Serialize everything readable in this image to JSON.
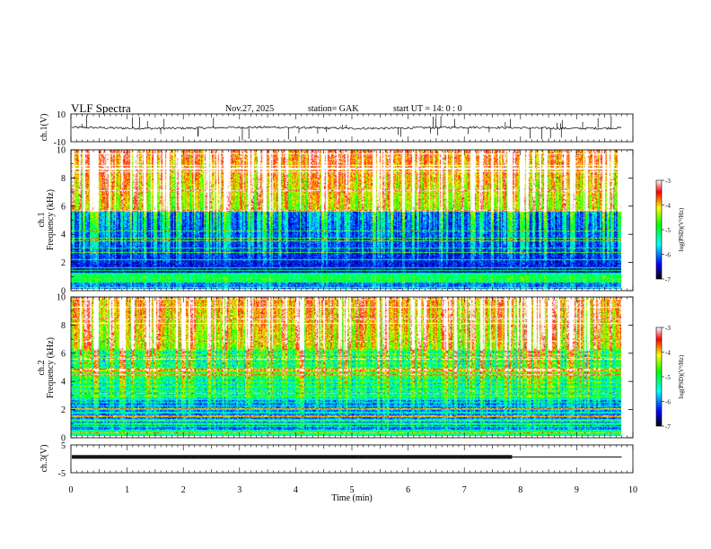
{
  "header": {
    "title": "VLF  Spectra",
    "date": "Nov.27, 2025",
    "station": "station= GAK",
    "start_ut": "start  UT  =     14: 0   : 0"
  },
  "chart_data": [
    {
      "type": "line",
      "panel": "ch1-waveform",
      "ylabel": "ch.1(V)",
      "y_tick_labels": [
        "10",
        "-10"
      ],
      "ylim": [
        -10,
        10
      ],
      "xlim": [
        0,
        10
      ],
      "baseline_value": 0,
      "description_note": "noisy waveform near 0 V with occasional spikes"
    },
    {
      "type": "heatmap",
      "panel": "ch1-spectrogram",
      "ylabel_top": "ch.1",
      "ylabel": "Frequency  (kHz)",
      "y_ticks": [
        0,
        2,
        4,
        6,
        8,
        10
      ],
      "ylim": [
        0,
        10
      ],
      "xlim": [
        0,
        10
      ],
      "colorbar": {
        "label": "log(PSD)(V²/Hz)",
        "ticks": [
          "-3",
          "-4",
          "-5",
          "-6",
          "-7"
        ],
        "range": [
          -7,
          -3
        ]
      },
      "data_end_min": 9.8
    },
    {
      "type": "heatmap",
      "panel": "ch2-spectrogram",
      "ylabel_top": "ch.2",
      "ylabel": "Frequency  (kHz)",
      "y_ticks": [
        0,
        2,
        4,
        6,
        8,
        10
      ],
      "ylim": [
        0,
        10
      ],
      "xlim": [
        0,
        10
      ],
      "colorbar": {
        "label": "log(PSD)(V²/Hz)",
        "ticks": [
          "-3",
          "-4",
          "-5",
          "-6",
          "-7"
        ],
        "range": [
          -7,
          -3
        ]
      },
      "data_end_min": 9.8
    },
    {
      "type": "line",
      "panel": "ch3-waveform",
      "ylabel": "ch.3(V)",
      "y_tick_labels": [
        "5",
        "-5"
      ],
      "ylim": [
        -5,
        5
      ],
      "xlim": [
        0,
        10
      ],
      "level_value": 0.7,
      "dense_until_min": 7.85,
      "data_end_min": 9.8
    }
  ],
  "x_axis": {
    "xlabel": "Time  (min)",
    "tick_labels": [
      "0",
      "1",
      "2",
      "3",
      "4",
      "5",
      "6",
      "7",
      "8",
      "9",
      "10"
    ],
    "ticks": [
      0,
      1,
      2,
      3,
      4,
      5,
      6,
      7,
      8,
      9,
      10
    ]
  },
  "colors": {
    "colormap": [
      "#000033",
      "#0000ff",
      "#00ffff",
      "#00ff00",
      "#ffff00",
      "#ff0000",
      "#ffffff"
    ]
  }
}
